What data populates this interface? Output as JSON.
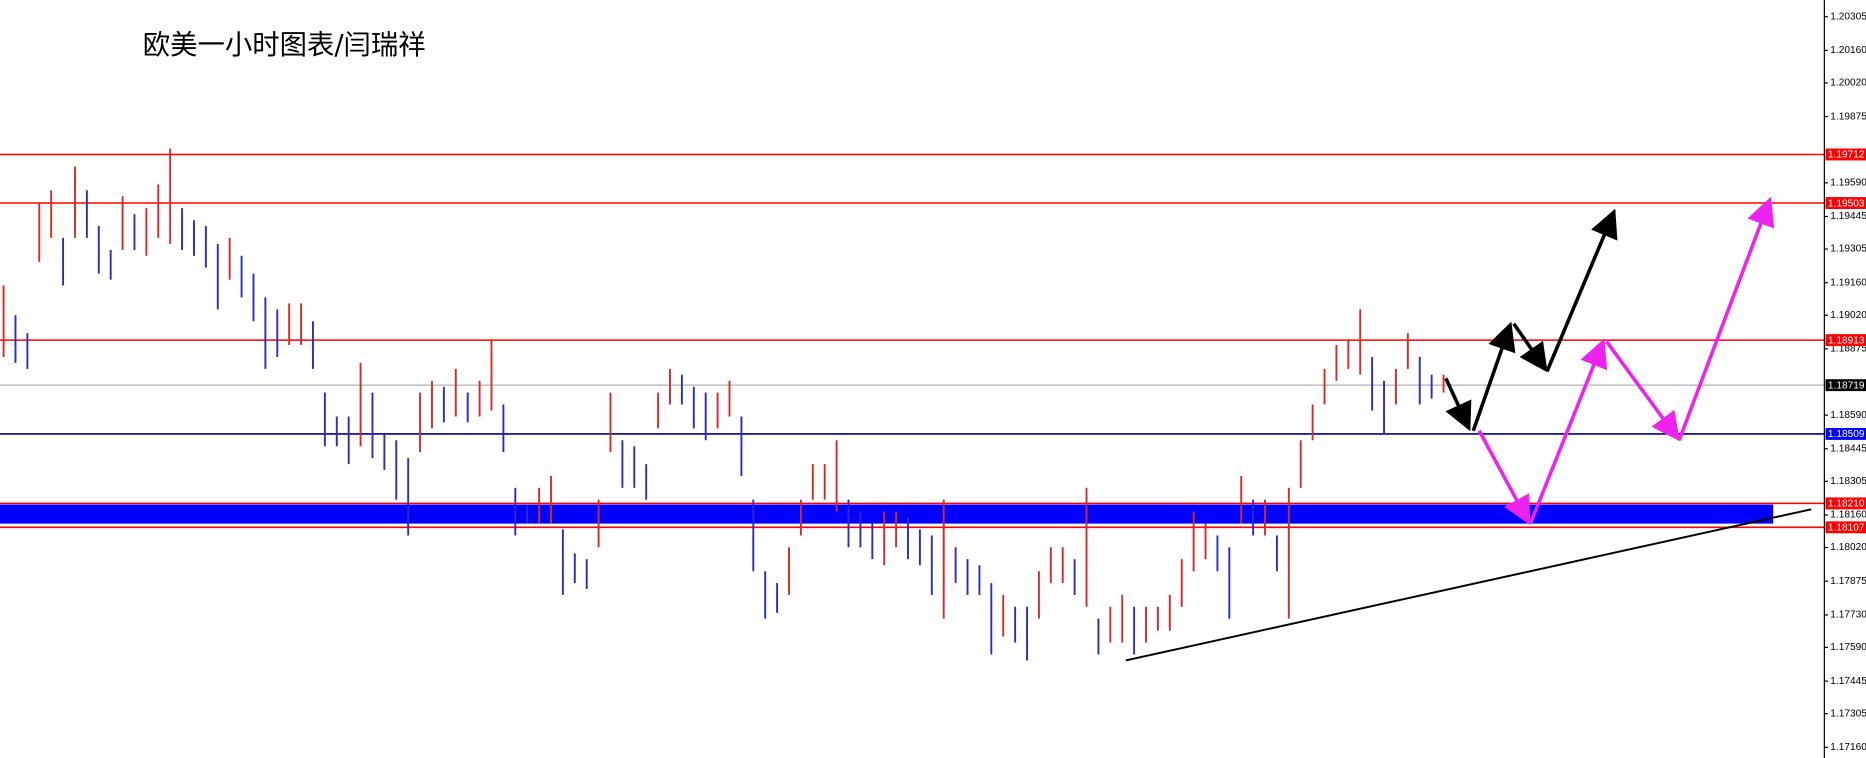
{
  "chart_data": {
    "type": "hilo",
    "title": "欧美一小时图表/闫瑞祥",
    "ylim": [
      1.17114,
      1.20377
    ],
    "yticks": [
      1.20305,
      {
        "value": 1.2016,
        "label": "1.20160"
      },
      {
        "value": 1.2002,
        "label": "1.20020"
      },
      1.19875,
      {
        "value": 1.1959,
        "label": "1.19590"
      },
      1.19445,
      1.19305,
      {
        "value": 1.1916,
        "label": "1.19160"
      },
      {
        "value": 1.1902,
        "label": "1.19020"
      },
      1.18875,
      {
        "value": 1.1859,
        "label": "1.18590"
      },
      1.18445,
      1.18305,
      {
        "value": 1.1816,
        "label": "1.18160"
      },
      {
        "value": 1.1802,
        "label": "1.18020"
      },
      1.17875,
      {
        "value": 1.1773,
        "label": "1.17730"
      },
      {
        "value": 1.1759,
        "label": "1.17590"
      },
      1.17445,
      1.17305,
      {
        "value": 1.1716,
        "label": "1.17160"
      }
    ],
    "up_color": "#d42a2a",
    "down_color": "#2b2bc8",
    "high": [
      1.19148,
      1.1902,
      1.18943,
      1.19506,
      1.19558,
      1.19353,
      1.1966,
      1.19558,
      1.19404,
      1.19301,
      1.19532,
      1.19455,
      1.19481,
      1.19583,
      1.19737,
      1.19481,
      1.19429,
      1.19404,
      1.19327,
      1.19353,
      1.19276,
      1.19199,
      1.19097,
      1.19045,
      1.19071,
      1.19071,
      1.18994,
      1.18687,
      1.18584,
      1.18584,
      1.18815,
      1.18687,
      1.18508,
      1.18482,
      1.18405,
      1.18687,
      1.18738,
      1.18712,
      1.18789,
      1.18687,
      1.18738,
      1.18917,
      1.18636,
      1.18277,
      1.182,
      1.18277,
      1.18328,
      1.18098,
      1.17995,
      1.1797,
      1.18226,
      1.18687,
      1.18482,
      1.18456,
      1.18379,
      1.18687,
      1.18789,
      1.18764,
      1.18712,
      1.18687,
      1.18687,
      1.18738,
      1.18584,
      1.18226,
      1.17918,
      1.17867,
      1.18021,
      1.18226,
      1.18379,
      1.18379,
      1.18482,
      1.18226,
      1.18175,
      1.18123,
      1.18175,
      1.18175,
      1.18149,
      1.18098,
      1.18072,
      1.18226,
      1.18021,
      1.1797,
      1.17944,
      1.17867,
      1.17816,
      1.17765,
      1.17765,
      1.17918,
      1.18021,
      1.18021,
      1.1797,
      1.18277,
      1.17714,
      1.17765,
      1.17816,
      1.17765,
      1.17765,
      1.17765,
      1.17816,
      1.1797,
      1.18175,
      1.18123,
      1.18072,
      1.18021,
      1.18328,
      1.18226,
      1.18226,
      1.18072,
      1.18277,
      1.18482,
      1.18636,
      1.18789,
      1.18892,
      1.18917,
      1.19045,
      1.1884,
      1.18738,
      1.18789,
      1.18943,
      1.1884,
      1.18764,
      1.18764
    ],
    "low": [
      1.1884,
      1.18815,
      1.18789,
      1.1925,
      1.19353,
      1.19148,
      1.19353,
      1.19353,
      1.19199,
      1.19173,
      1.19301,
      1.19301,
      1.19276,
      1.19353,
      1.19327,
      1.19301,
      1.19276,
      1.19225,
      1.19045,
      1.19173,
      1.19097,
      1.18994,
      1.18789,
      1.1884,
      1.18892,
      1.18892,
      1.18789,
      1.18456,
      1.18456,
      1.18379,
      1.18456,
      1.18405,
      1.18354,
      1.18226,
      1.18072,
      1.18431,
      1.18533,
      1.18559,
      1.18584,
      1.18559,
      1.18584,
      1.1861,
      1.18431,
      1.18072,
      1.18123,
      1.18123,
      1.18123,
      1.17816,
      1.17867,
      1.17842,
      1.18021,
      1.18431,
      1.18277,
      1.18277,
      1.18226,
      1.18533,
      1.18636,
      1.18636,
      1.18533,
      1.18482,
      1.18533,
      1.18584,
      1.18328,
      1.17918,
      1.17714,
      1.17739,
      1.17816,
      1.18072,
      1.18226,
      1.18226,
      1.18175,
      1.18021,
      1.18021,
      1.1797,
      1.17944,
      1.18021,
      1.1797,
      1.17944,
      1.17816,
      1.17714,
      1.17867,
      1.17816,
      1.17816,
      1.1756,
      1.17637,
      1.17611,
      1.17534,
      1.17714,
      1.17867,
      1.17867,
      1.17816,
      1.17765,
      1.1756,
      1.17611,
      1.17611,
      1.1756,
      1.17611,
      1.17662,
      1.17662,
      1.17765,
      1.17918,
      1.1797,
      1.17918,
      1.17714,
      1.18123,
      1.18072,
      1.18072,
      1.17918,
      1.17714,
      1.18277,
      1.18482,
      1.18636,
      1.18738,
      1.18789,
      1.18764,
      1.1861,
      1.18508,
      1.18636,
      1.18789,
      1.18636,
      1.18661,
      1.18687
    ],
    "levels": [
      {
        "value": 1.19712,
        "color": "#ff0000",
        "tag_color": "#ff0000"
      },
      {
        "value": 1.19503,
        "color": "#ff0000",
        "tag_color": "#ff0000"
      },
      {
        "value": 1.18913,
        "color": "#ff0000",
        "tag_color": "#ff0000"
      },
      {
        "value": 1.18719,
        "color": "#c0c0c0",
        "tag_color": "#000000"
      },
      {
        "value": 1.18509,
        "color": "#00008b",
        "tag_color": "#0000ff"
      },
      {
        "value": 1.1821,
        "label": "1.18210",
        "color": "#ff0000",
        "tag_color": "#ff0000"
      },
      {
        "value": 1.18107,
        "color": "#ff0000",
        "tag_color": "#ff0000"
      }
    ],
    "zone": {
      "range": [
        1.18123,
        1.18205
      ],
      "color": "#0000ff"
    }
  }
}
